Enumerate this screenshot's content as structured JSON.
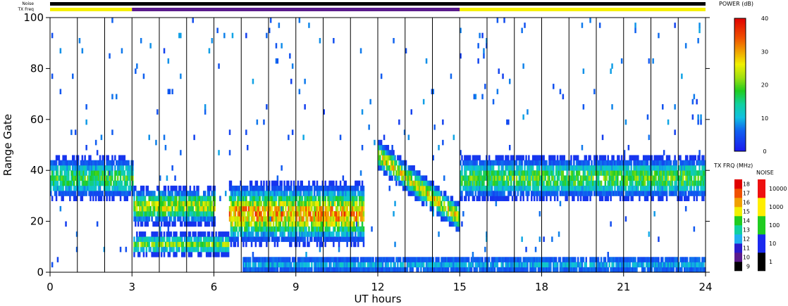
{
  "chart_data": {
    "type": "heatmap",
    "xlabel": "UT hours",
    "ylabel": "Range Gate",
    "xlim": [
      0,
      24
    ],
    "ylim": [
      0,
      100
    ],
    "x_ticks": [
      "0",
      "3",
      "6",
      "9",
      "12",
      "15",
      "18",
      "21",
      "24"
    ],
    "y_ticks": [
      "0",
      "20",
      "40",
      "60",
      "80",
      "100"
    ],
    "grid": "vertical lines every hour",
    "top_bars": {
      "noise_label": "Noise",
      "txfreq_label": "TX Freq",
      "noise_color": "#000000",
      "txfreq_segments": [
        {
          "start": 0,
          "end": 3,
          "color": "#f5f000"
        },
        {
          "start": 3,
          "end": 15,
          "color": "#5a1a8c"
        },
        {
          "start": 15,
          "end": 24,
          "color": "#f5f000"
        }
      ]
    },
    "colorbars": {
      "power": {
        "title": "POWER (dB)",
        "range": [
          0,
          40
        ],
        "ticks": [
          "0",
          "10",
          "20",
          "30",
          "40"
        ]
      },
      "txfreq": {
        "title": "TX FRQ (MHz)",
        "ticks": [
          "9",
          "10",
          "11",
          "12",
          "13",
          "14",
          "15",
          "16",
          "17",
          "18"
        ],
        "colors": [
          "#000000",
          "#5a1a8c",
          "#2a1acc",
          "#20b0f0",
          "#10d0a0",
          "#20cc20",
          "#f0f000",
          "#f0a000",
          "#f05000",
          "#e00000"
        ]
      },
      "noise": {
        "title": "NOISE",
        "ticks": [
          "1",
          "10",
          "100",
          "1000",
          "10000"
        ],
        "colors": [
          "#000000",
          "#1a2aee",
          "#20cc20",
          "#ffee00",
          "#ee1010"
        ]
      }
    },
    "regions": [
      {
        "name": "band-early",
        "t_start": 0,
        "t_end": 3,
        "g_center": 36,
        "g_width": 6,
        "peak_db": 22
      },
      {
        "name": "band-3-6-upper",
        "t_start": 3,
        "t_end": 6,
        "g_center": 25,
        "g_width": 5,
        "peak_db": 30
      },
      {
        "name": "band-3-6-lower",
        "t_start": 3,
        "t_end": 6.5,
        "g_center": 10,
        "g_width": 3,
        "peak_db": 25
      },
      {
        "name": "band-morning",
        "t_start": 6.5,
        "t_end": 11.5,
        "g_center": 22,
        "g_width": 8,
        "peak_db": 38
      },
      {
        "name": "band-diagonal",
        "t_start": 12,
        "t_end": 15,
        "g_start": 45,
        "g_end": 20,
        "g_width": 4,
        "peak_db": 32
      },
      {
        "name": "band-late",
        "t_start": 15,
        "t_end": 24,
        "g_center": 36,
        "g_width": 6,
        "peak_db": 24
      },
      {
        "name": "band-near-ground",
        "t_start": 7,
        "t_end": 24,
        "g_center": 2,
        "g_width": 3,
        "peak_db": 12
      }
    ]
  }
}
